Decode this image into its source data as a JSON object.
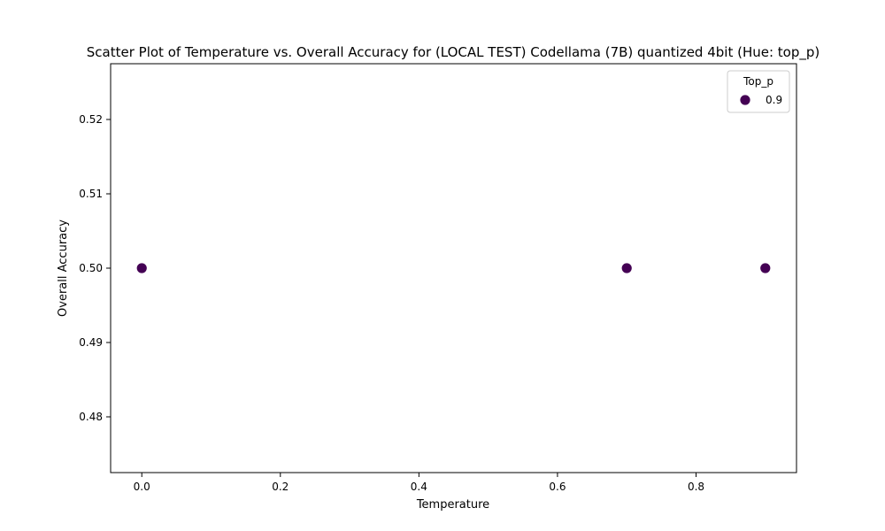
{
  "chart_data": {
    "type": "scatter",
    "title": "Scatter Plot of Temperature vs. Overall Accuracy for (LOCAL TEST) Codellama (7B) quantized 4bit (Hue: top_p)",
    "xlabel": "Temperature",
    "ylabel": "Overall Accuracy",
    "xlim": [
      -0.045,
      0.945
    ],
    "ylim": [
      0.4725,
      0.5275
    ],
    "x_ticks": [
      0.0,
      0.2,
      0.4,
      0.6,
      0.8
    ],
    "x_tick_labels": [
      "0.0",
      "0.2",
      "0.4",
      "0.6",
      "0.8"
    ],
    "y_ticks": [
      0.48,
      0.49,
      0.5,
      0.51,
      0.52
    ],
    "y_tick_labels": [
      "0.48",
      "0.49",
      "0.50",
      "0.51",
      "0.52"
    ],
    "grid": false,
    "legend": {
      "title": "Top_p",
      "placement": "top-right",
      "entries": [
        {
          "label": "0.9",
          "color": "#440154"
        }
      ]
    },
    "series": [
      {
        "name": "0.9",
        "color": "#440154",
        "points": [
          {
            "x": 0.0,
            "y": 0.5
          },
          {
            "x": 0.7,
            "y": 0.5
          },
          {
            "x": 0.9,
            "y": 0.5
          }
        ]
      }
    ]
  }
}
